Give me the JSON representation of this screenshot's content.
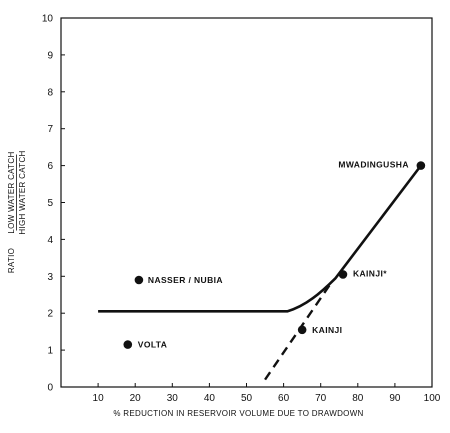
{
  "chart_data": {
    "type": "scatter",
    "xlabel": "% REDUCTION IN RESERVOIR VOLUME DUE TO DRAWDOWN",
    "ylabel": {
      "prefix": "RATIO",
      "numerator": "LOW WATER CATCH",
      "denominator": "HIGH WATER CATCH"
    },
    "xlim": [
      0,
      100
    ],
    "ylim": [
      0,
      10
    ],
    "x_ticks": [
      0,
      10,
      20,
      30,
      40,
      50,
      60,
      70,
      80,
      90,
      100
    ],
    "y_ticks": [
      0,
      1,
      2,
      3,
      4,
      5,
      6,
      7,
      8,
      9,
      10
    ],
    "grid": false,
    "points": [
      {
        "label": "MWADINGUSHA",
        "x": 97,
        "y": 6.0
      },
      {
        "label": "KAINJI*",
        "x": 76,
        "y": 3.05
      },
      {
        "label": "NASSER / NUBIA",
        "x": 21,
        "y": 2.9
      },
      {
        "label": "KAINJI",
        "x": 65,
        "y": 1.55
      },
      {
        "label": "VOLTA",
        "x": 18,
        "y": 1.15
      }
    ],
    "lines": [
      {
        "style": "solid",
        "points": [
          [
            10,
            2.05
          ],
          [
            61,
            2.05
          ],
          [
            66,
            2.2
          ],
          [
            70,
            2.55
          ],
          [
            74,
            2.95
          ],
          [
            97,
            6.0
          ]
        ]
      },
      {
        "style": "dashed",
        "points": [
          [
            55,
            0.2
          ],
          [
            73,
            2.85
          ]
        ]
      }
    ]
  }
}
